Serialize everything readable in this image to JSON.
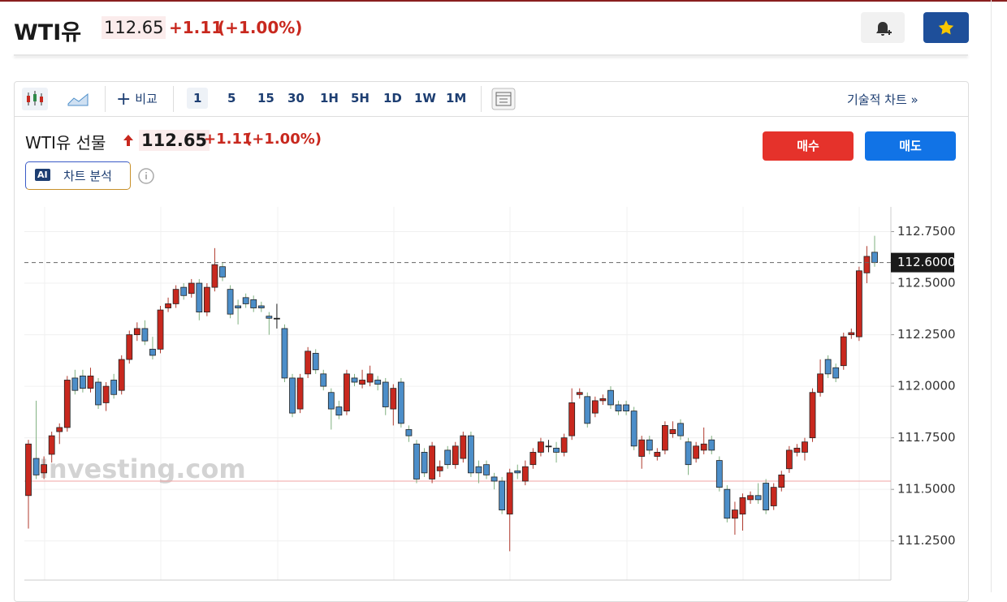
{
  "header": {
    "title": "WTI유",
    "price": "112.65",
    "change": "+1.11",
    "change_pct": "(+1.00%)"
  },
  "toolbar": {
    "compare": "비교",
    "intervals": [
      "1",
      "5",
      "15",
      "30",
      "1H",
      "5H",
      "1D",
      "1W",
      "1M"
    ],
    "technical": "기술적 차트 »"
  },
  "instrument": {
    "name": "WTI유 선물",
    "price": "112.65",
    "change": "+1.11",
    "change_pct": "(+1.00%)",
    "buy": "매수",
    "sell": "매도",
    "ai_badge": "AI",
    "ai_label": "차트 분석"
  },
  "chart_data": {
    "type": "candlestick",
    "watermark": "Investing.com",
    "ylim": [
      111.06,
      112.87
    ],
    "yticks": [
      {
        "value": 112.75,
        "label": "112.7500"
      },
      {
        "value": 112.5,
        "label": "112.5000"
      },
      {
        "value": 112.25,
        "label": "112.2500"
      },
      {
        "value": 112,
        "label": "112.0000"
      },
      {
        "value": 111.75,
        "label": "111.7500"
      },
      {
        "value": 111.5,
        "label": "111.5000"
      },
      {
        "value": 111.25,
        "label": "111.2500"
      }
    ],
    "last_price": {
      "value": 112.6,
      "label": "112.6000"
    },
    "reference_line": 111.54,
    "up_color": "#c8281e",
    "down_color": "#4c8ec9",
    "grid": true,
    "open": [
      111.47,
      111.65,
      111.58,
      111.67,
      111.78,
      111.8,
      112.04,
      112.05,
      111.99,
      112.02,
      111.92,
      112.03,
      111.98,
      112.13,
      112.25,
      112.28,
      112.18,
      112.18,
      112.38,
      112.4,
      112.48,
      112.45,
      112.5,
      112.36,
      112.48,
      112.58,
      112.47,
      112.39,
      112.43,
      112.42,
      112.39,
      112.34,
      112.33,
      112.28,
      112.04,
      111.89,
      112.06,
      112.16,
      112.06,
      111.97,
      111.9,
      111.88,
      112.04,
      112.01,
      112.02,
      112.03,
      112.02,
      111.89,
      112.02,
      111.79,
      111.72,
      111.68,
      111.55,
      111.59,
      111.69,
      111.62,
      111.65,
      111.76,
      111.61,
      111.62,
      111.56,
      111.54,
      111.38,
      111.59,
      111.54,
      111.62,
      111.68,
      111.71,
      111.7,
      111.68,
      111.76,
      111.96,
      111.95,
      111.87,
      111.93,
      111.98,
      111.91,
      111.91,
      111.88,
      111.66,
      111.74,
      111.66,
      111.69,
      111.77,
      111.82,
      111.73,
      111.65,
      111.69,
      111.74,
      111.64,
      111.5,
      111.36,
      111.38,
      111.45,
      111.47,
      111.53,
      111.42,
      111.51,
      111.6,
      111.68,
      111.68,
      111.75,
      111.97,
      112.13,
      112.09,
      112.1,
      112.25,
      112.24,
      112.55,
      112.65
    ],
    "high": [
      111.74,
      111.93,
      111.66,
      111.78,
      111.82,
      112.05,
      112.08,
      112.08,
      112.09,
      112.04,
      112.02,
      112.06,
      112.15,
      112.27,
      112.31,
      112.32,
      112.24,
      112.39,
      112.43,
      112.49,
      112.5,
      112.52,
      112.52,
      112.5,
      112.67,
      112.6,
      112.49,
      112.42,
      112.45,
      112.44,
      112.41,
      112.36,
      112.4,
      112.3,
      112.06,
      112.06,
      112.19,
      112.18,
      112.08,
      111.99,
      111.93,
      112.08,
      112.06,
      112.08,
      112.1,
      112.05,
      112.04,
      112.01,
      112.04,
      111.81,
      111.74,
      111.7,
      111.73,
      111.64,
      111.71,
      111.73,
      111.78,
      111.78,
      111.64,
      111.64,
      111.58,
      111.56,
      111.6,
      111.62,
      111.64,
      111.7,
      111.75,
      111.74,
      111.73,
      111.77,
      111.99,
      111.99,
      111.97,
      111.95,
      111.96,
      112.0,
      111.93,
      111.93,
      111.9,
      111.76,
      111.76,
      111.7,
      111.83,
      111.83,
      111.84,
      111.75,
      111.73,
      111.8,
      111.76,
      111.66,
      111.52,
      111.44,
      111.48,
      111.49,
      111.53,
      111.55,
      111.53,
      111.59,
      111.71,
      111.72,
      111.75,
      111.99,
      112.13,
      112.15,
      112.11,
      112.26,
      112.28,
      112.58,
      112.68,
      112.73
    ],
    "low": [
      111.31,
      111.55,
      111.55,
      111.63,
      111.72,
      111.78,
      111.96,
      111.97,
      111.97,
      111.89,
      111.88,
      111.94,
      111.96,
      112.11,
      112.22,
      112.2,
      112.13,
      112.16,
      112.36,
      112.38,
      112.42,
      112.43,
      112.32,
      112.34,
      112.46,
      112.51,
      112.33,
      112.3,
      112.38,
      112.36,
      112.36,
      112.25,
      112.28,
      112.02,
      111.85,
      111.87,
      112.04,
      112.06,
      111.98,
      111.79,
      111.84,
      111.86,
      112.0,
      111.99,
      112.0,
      111.98,
      111.86,
      111.81,
      111.8,
      111.73,
      111.53,
      111.56,
      111.53,
      111.56,
      111.6,
      111.6,
      111.63,
      111.56,
      111.53,
      111.55,
      111.5,
      111.38,
      111.2,
      111.55,
      111.52,
      111.6,
      111.66,
      111.68,
      111.63,
      111.66,
      111.74,
      111.94,
      111.8,
      111.85,
      111.91,
      111.89,
      111.86,
      111.86,
      111.69,
      111.6,
      111.67,
      111.64,
      111.67,
      111.75,
      111.74,
      111.57,
      111.63,
      111.67,
      111.67,
      111.49,
      111.34,
      111.28,
      111.3,
      111.43,
      111.43,
      111.38,
      111.4,
      111.49,
      111.58,
      111.66,
      111.64,
      111.73,
      111.95,
      112.04,
      112.02,
      112.08,
      112.23,
      112.22,
      112.5,
      112.58
    ],
    "close": [
      111.72,
      111.57,
      111.62,
      111.76,
      111.8,
      112.03,
      111.98,
      111.99,
      112.05,
      111.91,
      112.0,
      111.96,
      112.13,
      112.25,
      112.28,
      112.22,
      112.15,
      112.37,
      112.4,
      112.47,
      112.44,
      112.5,
      112.36,
      112.48,
      112.59,
      112.53,
      112.35,
      112.38,
      112.4,
      112.38,
      112.38,
      112.33,
      112.33,
      112.04,
      111.87,
      112.04,
      112.17,
      112.08,
      112.0,
      111.89,
      111.86,
      112.06,
      112.02,
      112.03,
      112.06,
      112.01,
      111.9,
      111.99,
      111.82,
      111.76,
      111.55,
      111.58,
      111.71,
      111.61,
      111.62,
      111.71,
      111.76,
      111.58,
      111.58,
      111.57,
      111.54,
      111.4,
      111.58,
      111.58,
      111.61,
      111.68,
      111.73,
      111.71,
      111.68,
      111.75,
      111.92,
      111.97,
      111.82,
      111.93,
      111.94,
      111.91,
      111.88,
      111.88,
      111.71,
      111.74,
      111.69,
      111.68,
      111.81,
      111.79,
      111.76,
      111.62,
      111.71,
      111.72,
      111.69,
      111.51,
      111.36,
      111.4,
      111.46,
      111.47,
      111.45,
      111.4,
      111.51,
      111.57,
      111.69,
      111.7,
      111.73,
      111.97,
      112.06,
      112.06,
      112.04,
      112.24,
      112.26,
      112.56,
      112.63,
      112.6
    ]
  }
}
